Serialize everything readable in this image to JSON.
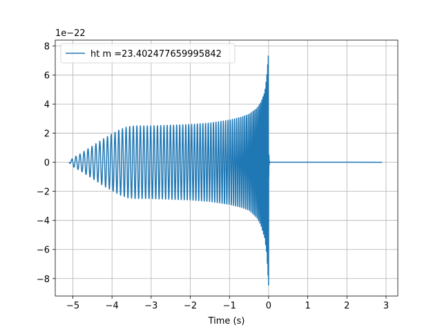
{
  "chart_data": {
    "type": "line",
    "title": "",
    "xlabel": "Time (s)",
    "ylabel": "",
    "offset_label": "1e−22",
    "xlim": [
      -5.45,
      3.3
    ],
    "ylim": [
      -9.2,
      8.4
    ],
    "x_ticks": [
      -5,
      -4,
      -3,
      -2,
      -1,
      0,
      1,
      2,
      3
    ],
    "x_tick_labels": [
      "−5",
      "−4",
      "−3",
      "−2",
      "−1",
      "0",
      "1",
      "2",
      "3"
    ],
    "y_ticks": [
      -8,
      -6,
      -4,
      -2,
      0,
      2,
      4,
      6,
      8
    ],
    "y_tick_labels": [
      "−8",
      "−6",
      "−4",
      "−2",
      "0",
      "2",
      "4",
      "6",
      "8"
    ],
    "grid": true,
    "legend_position": "upper-left",
    "series": [
      {
        "name": "ht m =23.402477659995842",
        "color": "#1f77b4",
        "x_start": -5.1,
        "merger_time": 0.0,
        "x_end": 2.9,
        "envelope_x": [
          -5.1,
          -5.0,
          -4.8,
          -4.6,
          -4.4,
          -4.2,
          -4.0,
          -3.8,
          -3.6,
          -3.4,
          -3.2,
          -3.0,
          -2.5,
          -2.0,
          -1.5,
          -1.0,
          -0.7,
          -0.5,
          -0.3,
          -0.2,
          -0.1,
          -0.05,
          0.0
        ],
        "envelope_upper": [
          0.0,
          0.3,
          0.6,
          0.95,
          1.3,
          1.65,
          1.95,
          2.25,
          2.45,
          2.5,
          2.5,
          2.5,
          2.55,
          2.6,
          2.7,
          2.9,
          3.1,
          3.3,
          3.7,
          4.1,
          4.8,
          5.8,
          7.6
        ],
        "envelope_lower": [
          0.0,
          -0.3,
          -0.6,
          -0.95,
          -1.3,
          -1.65,
          -1.95,
          -2.25,
          -2.45,
          -2.5,
          -2.5,
          -2.5,
          -2.55,
          -2.6,
          -2.7,
          -2.9,
          -3.1,
          -3.3,
          -3.8,
          -4.3,
          -5.2,
          -6.2,
          -8.5
        ]
      }
    ]
  }
}
